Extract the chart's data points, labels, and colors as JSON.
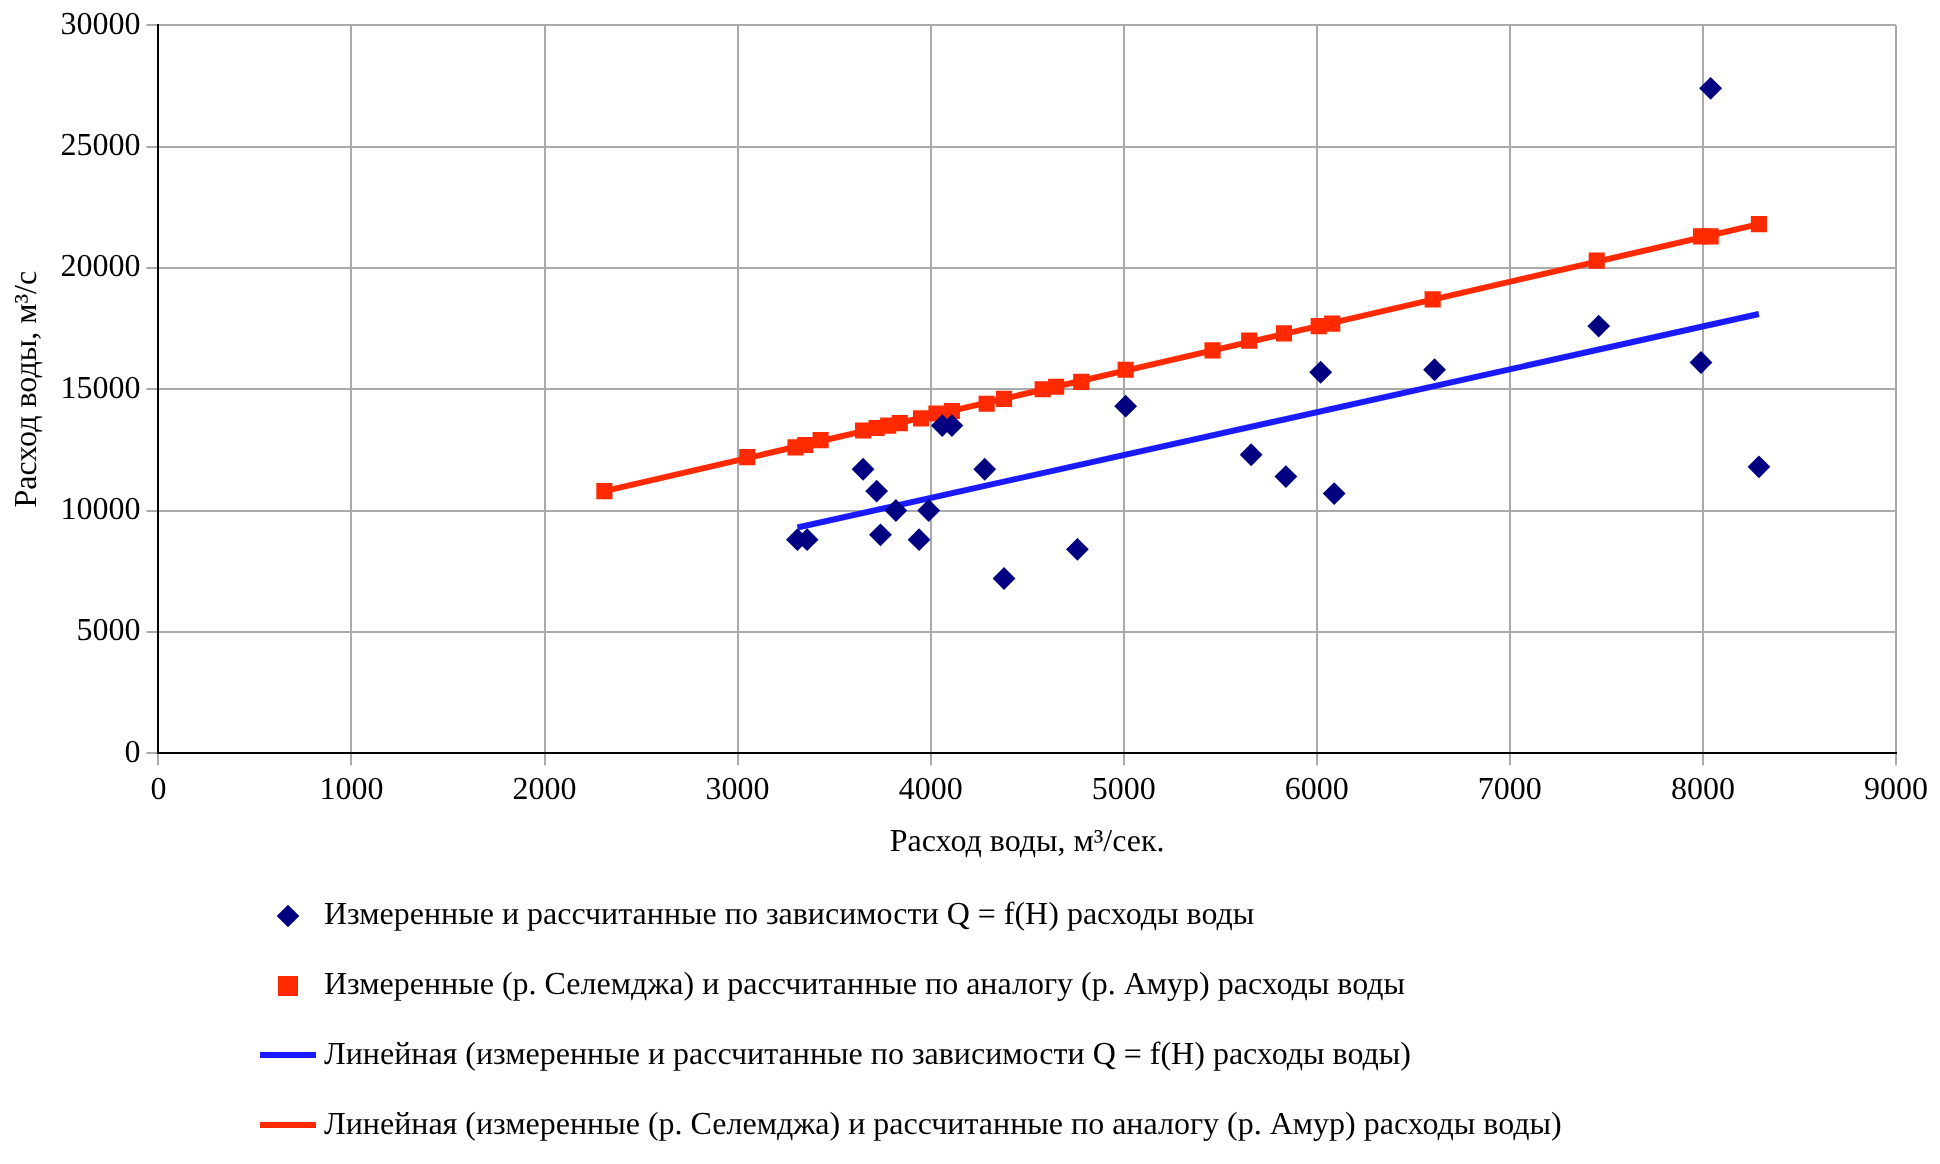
{
  "chart_data": {
    "type": "scatter",
    "xlabel": "Расход воды, м³/сек.",
    "ylabel": "Расход воды, м³/с",
    "xlim": [
      0,
      9000
    ],
    "xticks": [
      0,
      1000,
      2000,
      3000,
      4000,
      5000,
      6000,
      7000,
      8000,
      9000
    ],
    "ylim": [
      0,
      30000
    ],
    "yticks": [
      0,
      5000,
      10000,
      15000,
      20000,
      25000,
      30000
    ],
    "grid": true,
    "legend": "bottom",
    "series": [
      {
        "name": "Измеренные и рассчитанные по зависимости Q = f(H) расходы воды",
        "type": "scatter",
        "marker": "diamond",
        "color": "#000080",
        "x": [
          3310,
          3360,
          3650,
          3720,
          3740,
          3820,
          3940,
          3990,
          4060,
          4110,
          4280,
          4380,
          4760,
          5010,
          5660,
          5840,
          6020,
          6090,
          6610,
          7460,
          7990,
          8040,
          8290
        ],
        "values": [
          8800,
          8800,
          11700,
          10800,
          9000,
          10000,
          8800,
          10000,
          13500,
          13500,
          11700,
          7200,
          8400,
          14300,
          12300,
          11400,
          15700,
          10700,
          15800,
          17600,
          16100,
          27400,
          11800
        ]
      },
      {
        "name": "Измеренные (р. Селемджа) и рассчитанные по аналогу (р. Амур) расходы воды",
        "type": "scatter",
        "marker": "square",
        "color": "#ff2a00",
        "x": [
          2310,
          3050,
          3300,
          3350,
          3430,
          3650,
          3720,
          3780,
          3840,
          3950,
          4030,
          4110,
          4290,
          4380,
          4580,
          4650,
          4780,
          5010,
          5460,
          5650,
          5830,
          6010,
          6080,
          6600,
          7450,
          7990,
          8040,
          8290
        ],
        "values": [
          10800,
          12200,
          12600,
          12700,
          12900,
          13300,
          13400,
          13500,
          13600,
          13800,
          14000,
          14100,
          14400,
          14600,
          15000,
          15100,
          15300,
          15800,
          16600,
          17000,
          17300,
          17600,
          17700,
          18700,
          20300,
          21300,
          21300,
          21800
        ]
      },
      {
        "name": "Линейная (измеренные и рассчитанные по зависимости Q = f(H) расходы воды)",
        "type": "line",
        "marker": "none",
        "color": "#1a1aff",
        "x": [
          3310,
          8290
        ],
        "values": [
          9300,
          18100
        ]
      },
      {
        "name": "Линейная (измеренные (р. Селемджа) и рассчитанные по аналогу (р. Амур) расходы воды)",
        "type": "line",
        "marker": "none",
        "color": "#ff2a00",
        "x": [
          2310,
          8290
        ],
        "values": [
          10800,
          21800
        ]
      }
    ]
  }
}
